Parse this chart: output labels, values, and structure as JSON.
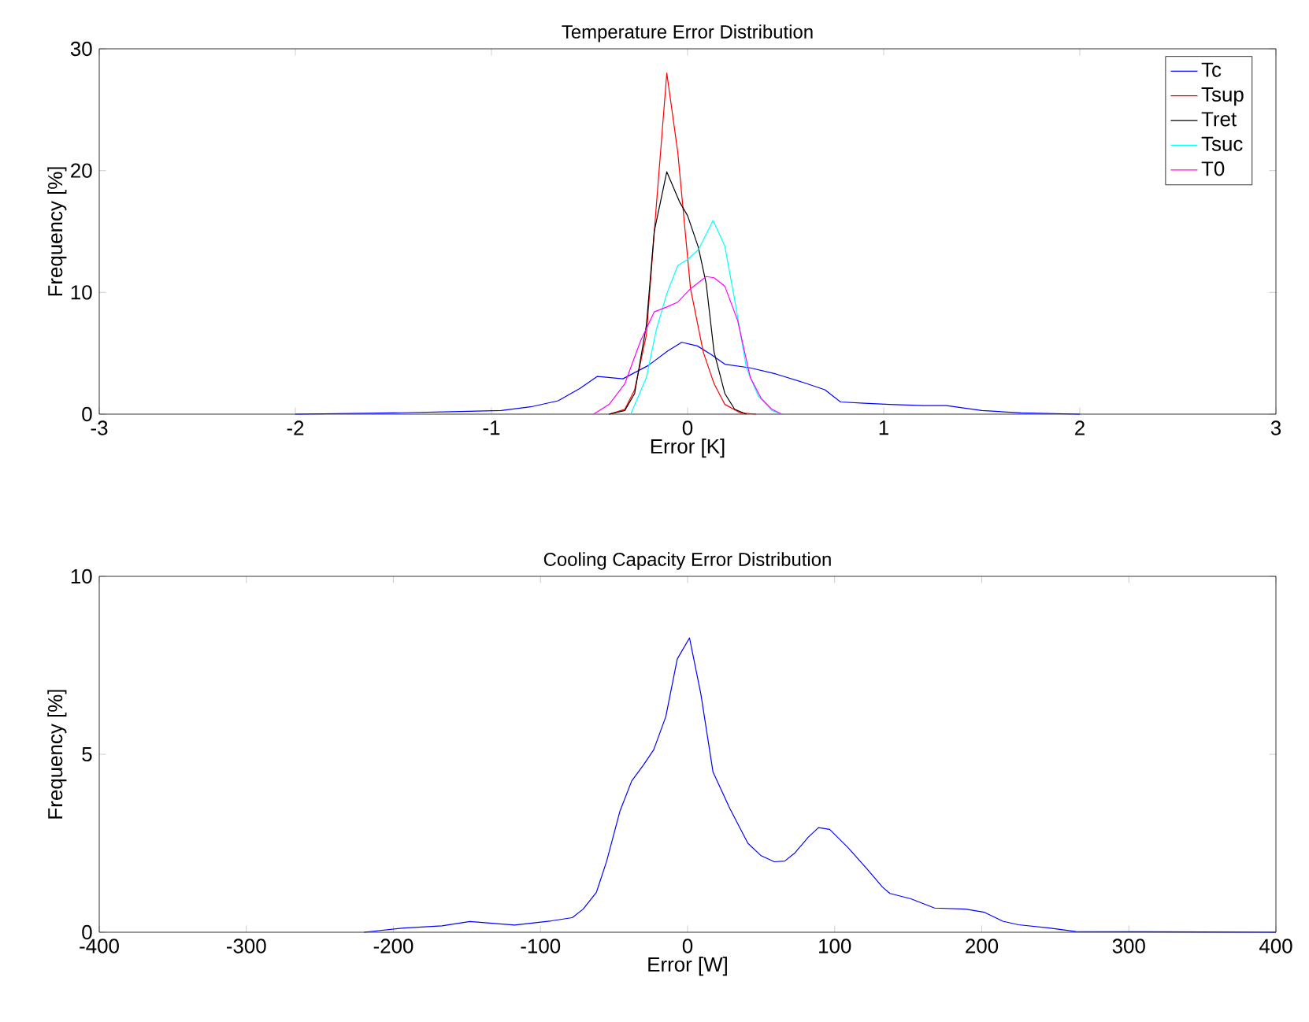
{
  "chart_data": [
    {
      "type": "line",
      "title": "Temperature Error Distribution",
      "xlabel": "Error [K]",
      "ylabel": "Frequency [%]",
      "xlim": [
        -3,
        3
      ],
      "xticks": [
        -3,
        -2,
        -1,
        0,
        1,
        2,
        3
      ],
      "ylim": [
        0,
        30
      ],
      "yticks": [
        0,
        10,
        20,
        30
      ],
      "legend": "top right",
      "grid": false,
      "marker": "none",
      "line_style": "solid",
      "series": [
        {
          "name": "Tc",
          "color": "#0000ff",
          "x": [
            -2,
            -1.5,
            -1.2,
            -0.95,
            -0.8,
            -0.66,
            -0.55,
            -0.46,
            -0.33,
            -0.2,
            -0.1,
            -0.03,
            0.05,
            0.12,
            0.19,
            0.32,
            0.45,
            0.59,
            0.7,
            0.78,
            0.9,
            1.03,
            1.2,
            1.32,
            1.5,
            1.7,
            2
          ],
          "values": [
            0,
            0.1,
            0.2,
            0.3,
            0.6,
            1.1,
            2.1,
            3.1,
            2.9,
            4.0,
            5.2,
            5.9,
            5.6,
            4.9,
            4.1,
            3.8,
            3.3,
            2.6,
            2.0,
            1.0,
            0.9,
            0.8,
            0.7,
            0.7,
            0.3,
            0.1,
            0
          ]
        },
        {
          "name": "Tsup",
          "color": "#ff0000",
          "x": [
            -0.4,
            -0.32,
            -0.27,
            -0.21,
            -0.16,
            -0.106,
            -0.05,
            0.015,
            0.08,
            0.135,
            0.19,
            0.27,
            0.35
          ],
          "values": [
            0,
            0.4,
            2,
            6.5,
            17,
            28,
            21.5,
            10.3,
            5.1,
            2.5,
            0.8,
            0.1,
            0
          ]
        },
        {
          "name": "Tret",
          "color": "#000000",
          "x": [
            -0.4,
            -0.32,
            -0.27,
            -0.21,
            -0.17,
            -0.106,
            -0.04,
            0,
            0.055,
            0.095,
            0.135,
            0.19,
            0.24,
            0.3
          ],
          "values": [
            0,
            0.3,
            1.7,
            7.3,
            15,
            19.9,
            17.4,
            16.3,
            13.7,
            10.7,
            5.1,
            1.7,
            0.4,
            0
          ]
        },
        {
          "name": "Tsuc",
          "color": "#00ffff",
          "x": [
            -0.29,
            -0.21,
            -0.16,
            -0.106,
            -0.05,
            0,
            0.055,
            0.13,
            0.19,
            0.24,
            0.3,
            0.36,
            0.43,
            0.48
          ],
          "values": [
            0,
            3.0,
            6.9,
            9.9,
            12.2,
            12.7,
            13.5,
            15.9,
            13.8,
            9.4,
            3.8,
            1.5,
            0.3,
            0
          ]
        },
        {
          "name": "T0",
          "color": "#ff00ff",
          "x": [
            -0.48,
            -0.4,
            -0.32,
            -0.24,
            -0.17,
            -0.106,
            -0.05,
            0.015,
            0.095,
            0.135,
            0.19,
            0.255,
            0.32,
            0.375,
            0.43,
            0.48
          ],
          "values": [
            0,
            0.8,
            2.5,
            6.0,
            8.4,
            8.8,
            9.2,
            10.3,
            11.3,
            11.2,
            10.5,
            7.7,
            3.0,
            1.3,
            0.4,
            0
          ]
        }
      ]
    },
    {
      "type": "line",
      "title": "Cooling Capacity Error Distribution",
      "xlabel": "Error [W]",
      "ylabel": "Frequency [%]",
      "xlim": [
        -400,
        400
      ],
      "xticks": [
        -400,
        -300,
        -200,
        -100,
        0,
        100,
        200,
        300,
        400
      ],
      "ylim": [
        0,
        10
      ],
      "yticks": [
        0,
        5,
        10
      ],
      "legend": false,
      "grid": false,
      "marker": "none",
      "line_style": "solid",
      "series": [
        {
          "color": "#0000ff",
          "x": [
            -220,
            -192.5,
            -167,
            -148,
            -117.6,
            -92.6,
            -78.4,
            -71,
            -62,
            -55,
            -46,
            -38,
            -30,
            -23,
            -14.8,
            -7,
            1.3,
            9,
            17.3,
            28.7,
            41,
            50,
            59,
            66,
            73,
            82,
            89,
            96.6,
            109,
            122,
            132.5,
            137.6,
            151.8,
            167.9,
            189,
            201.8,
            214.3,
            225,
            246,
            264,
            400
          ],
          "values": [
            0,
            0.12,
            0.18,
            0.3,
            0.2,
            0.32,
            0.41,
            0.65,
            1.12,
            2.0,
            3.4,
            4.25,
            4.7,
            5.13,
            6.06,
            7.68,
            8.27,
            6.7,
            4.5,
            3.48,
            2.5,
            2.15,
            1.98,
            2.0,
            2.23,
            2.67,
            2.94,
            2.89,
            2.38,
            1.78,
            1.27,
            1.09,
            0.94,
            0.68,
            0.65,
            0.56,
            0.31,
            0.21,
            0.12,
            0.02,
            0
          ]
        }
      ]
    }
  ]
}
